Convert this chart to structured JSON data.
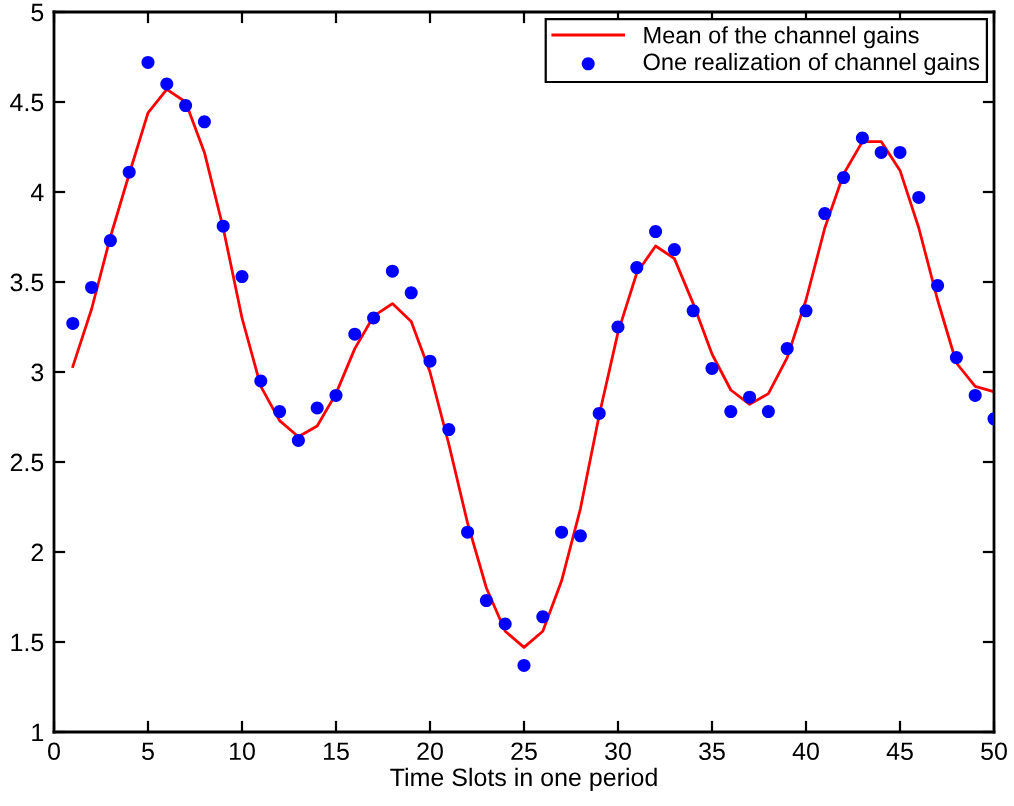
{
  "chart_data": {
    "type": "line",
    "xlabel": "Time Slots in one period",
    "xlim": [
      0,
      50
    ],
    "xticks": [
      0,
      5,
      10,
      15,
      20,
      25,
      30,
      35,
      40,
      45,
      50
    ],
    "ylim": [
      1,
      5
    ],
    "yticks": [
      1,
      1.5,
      2,
      2.5,
      3,
      3.5,
      4,
      4.5,
      5
    ],
    "grid": false,
    "legend": "top right",
    "x": [
      1,
      2,
      3,
      4,
      5,
      6,
      7,
      8,
      9,
      10,
      11,
      12,
      13,
      14,
      15,
      16,
      17,
      18,
      19,
      20,
      21,
      22,
      23,
      24,
      25,
      26,
      27,
      28,
      29,
      30,
      31,
      32,
      33,
      34,
      35,
      36,
      37,
      38,
      39,
      40,
      41,
      42,
      43,
      44,
      45,
      46,
      47,
      48,
      49,
      50
    ],
    "series": [
      {
        "name": "Mean of the channel gains",
        "color": "#ff0000",
        "marker": "none",
        "line_style": "solid",
        "values": [
          3.03,
          3.35,
          3.75,
          4.1,
          4.44,
          4.57,
          4.5,
          4.22,
          3.8,
          3.3,
          2.92,
          2.73,
          2.64,
          2.7,
          2.88,
          3.13,
          3.31,
          3.38,
          3.28,
          3.0,
          2.6,
          2.16,
          1.8,
          1.56,
          1.47,
          1.56,
          1.84,
          2.24,
          2.76,
          3.22,
          3.55,
          3.7,
          3.63,
          3.38,
          3.1,
          2.9,
          2.82,
          2.88,
          3.08,
          3.4,
          3.8,
          4.1,
          4.28,
          4.28,
          4.12,
          3.8,
          3.4,
          3.05,
          2.92,
          2.89
        ]
      },
      {
        "name": "One realization of channel gains",
        "type": "scatter",
        "color": "#0000ff",
        "marker": "circle",
        "values": [
          3.27,
          3.47,
          3.73,
          4.11,
          4.72,
          4.6,
          4.48,
          4.39,
          3.81,
          3.53,
          2.95,
          2.78,
          2.62,
          2.8,
          2.87,
          3.21,
          3.3,
          3.56,
          3.44,
          3.06,
          2.68,
          2.11,
          1.73,
          1.6,
          1.37,
          1.64,
          2.11,
          2.09,
          2.77,
          3.25,
          3.58,
          3.78,
          3.68,
          3.34,
          3.02,
          2.78,
          2.86,
          2.78,
          3.13,
          3.34,
          3.88,
          4.08,
          4.3,
          4.22,
          4.22,
          3.97,
          3.48,
          3.08,
          2.87,
          2.74
        ]
      }
    ]
  }
}
